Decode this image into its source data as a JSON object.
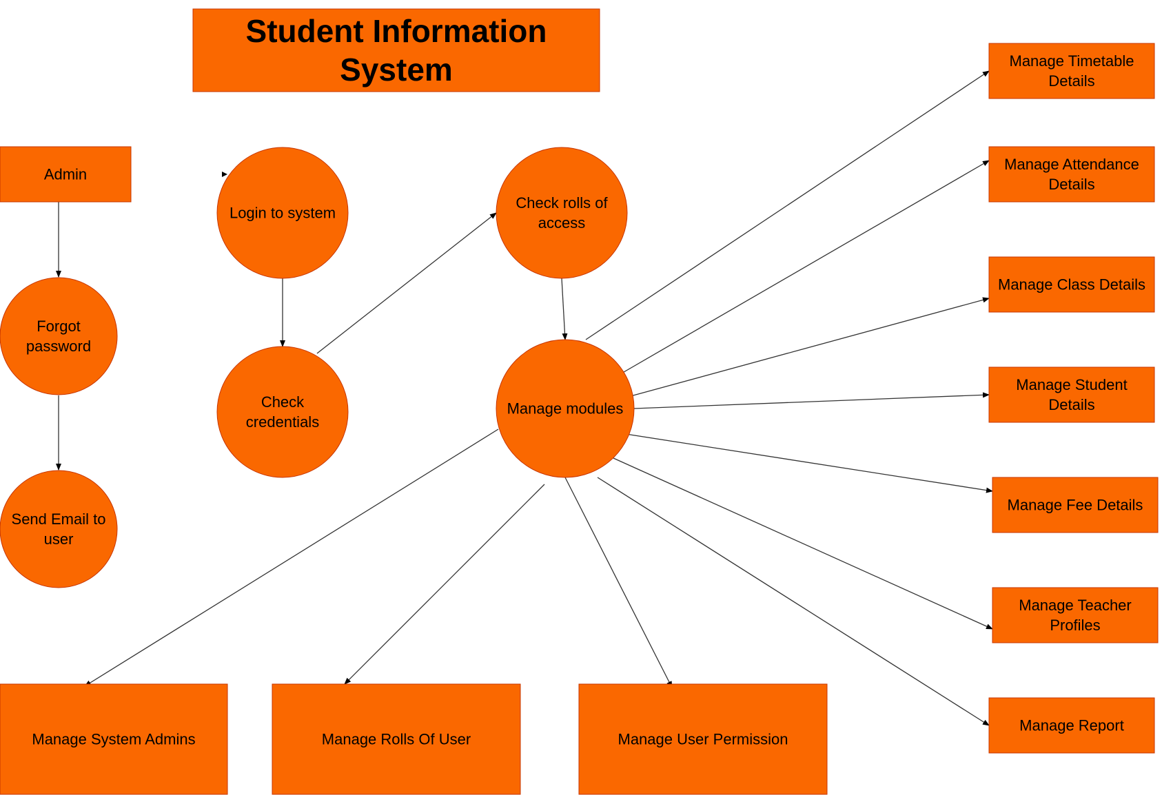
{
  "diagram": {
    "title": "Student Information System",
    "colors": {
      "fill": "#FA6800",
      "stroke": "#C73500",
      "edge": "#333333",
      "background": "#FFFFFF"
    },
    "nodes": [
      {
        "id": "title",
        "shape": "rect",
        "lines": [
          "Student Information",
          "System"
        ]
      },
      {
        "id": "admin",
        "shape": "rect",
        "lines": [
          "Admin"
        ]
      },
      {
        "id": "forgot",
        "shape": "circle",
        "lines": [
          "Forgot",
          "password"
        ]
      },
      {
        "id": "sendemail",
        "shape": "circle",
        "lines": [
          "Send Email to",
          "user"
        ]
      },
      {
        "id": "login",
        "shape": "circle",
        "lines": [
          "Login to system"
        ]
      },
      {
        "id": "checkcred",
        "shape": "circle",
        "lines": [
          "Check",
          "credentials"
        ]
      },
      {
        "id": "checkrolls",
        "shape": "circle",
        "lines": [
          "Check rolls of",
          "access"
        ]
      },
      {
        "id": "modules",
        "shape": "circle",
        "lines": [
          "Manage modules"
        ]
      },
      {
        "id": "timetable",
        "shape": "rect",
        "lines": [
          "Manage Timetable",
          "Details"
        ]
      },
      {
        "id": "attendance",
        "shape": "rect",
        "lines": [
          "Manage Attendance",
          "Details"
        ]
      },
      {
        "id": "class",
        "shape": "rect",
        "lines": [
          "Manage Class Details"
        ]
      },
      {
        "id": "student",
        "shape": "rect",
        "lines": [
          "Manage Student",
          "Details"
        ]
      },
      {
        "id": "fee",
        "shape": "rect",
        "lines": [
          "Manage Fee Details"
        ]
      },
      {
        "id": "teacher",
        "shape": "rect",
        "lines": [
          "Manage Teacher",
          "Profiles"
        ]
      },
      {
        "id": "report",
        "shape": "rect",
        "lines": [
          "Manage Report"
        ]
      },
      {
        "id": "sysadmins",
        "shape": "rect",
        "lines": [
          "Manage System Admins"
        ]
      },
      {
        "id": "rolls",
        "shape": "rect",
        "lines": [
          "Manage Rolls Of User"
        ]
      },
      {
        "id": "permission",
        "shape": "rect",
        "lines": [
          "Manage User Permission"
        ]
      }
    ],
    "edges": [
      {
        "from": "admin",
        "to": "forgot"
      },
      {
        "from": "forgot",
        "to": "sendemail"
      },
      {
        "from": "login",
        "to": "checkcred"
      },
      {
        "from": "checkcred",
        "to": "checkrolls"
      },
      {
        "from": "checkrolls",
        "to": "modules"
      },
      {
        "from": "modules",
        "to": "timetable"
      },
      {
        "from": "modules",
        "to": "attendance"
      },
      {
        "from": "modules",
        "to": "class"
      },
      {
        "from": "modules",
        "to": "student"
      },
      {
        "from": "modules",
        "to": "fee"
      },
      {
        "from": "modules",
        "to": "teacher"
      },
      {
        "from": "modules",
        "to": "report"
      },
      {
        "from": "modules",
        "to": "sysadmins"
      },
      {
        "from": "modules",
        "to": "rolls"
      },
      {
        "from": "modules",
        "to": "permission"
      }
    ]
  }
}
